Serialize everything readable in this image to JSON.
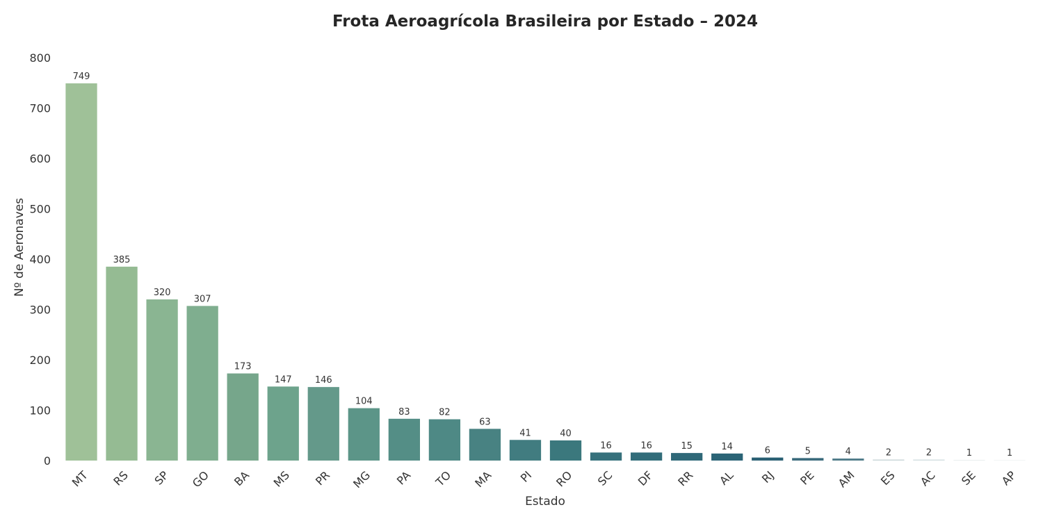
{
  "chart_data": {
    "type": "bar",
    "title": "Frota Aeroagrícola Brasileira por Estado – 2024",
    "xlabel": "Estado",
    "ylabel": "Nº de Aeronaves",
    "ylim": [
      0,
      800
    ],
    "yticks": [
      "0",
      "100",
      "200",
      "300",
      "400",
      "500",
      "600",
      "700",
      "800"
    ],
    "grid": false,
    "categories": [
      "MT",
      "RS",
      "SP",
      "GO",
      "BA",
      "MS",
      "PR",
      "MG",
      "PA",
      "TO",
      "MA",
      "PI",
      "RO",
      "SC",
      "DF",
      "RR",
      "AL",
      "RJ",
      "PE",
      "AM",
      "ES",
      "AC",
      "SE",
      "AP"
    ],
    "values": [
      749,
      385,
      320,
      307,
      173,
      147,
      146,
      104,
      83,
      82,
      63,
      41,
      40,
      16,
      16,
      15,
      14,
      6,
      5,
      4,
      2,
      2,
      1,
      1
    ],
    "data_labels": [
      "749",
      "385",
      "320",
      "307",
      "173",
      "147",
      "146",
      "104",
      "83",
      "82",
      "63",
      "41",
      "40",
      "16",
      "16",
      "15",
      "14",
      "6",
      "5",
      "4",
      "2",
      "2",
      "1",
      "1"
    ],
    "colors": [
      "#9fc198",
      "#95bb93",
      "#8ab592",
      "#7fae8f",
      "#76a68b",
      "#6da38c",
      "#64998a",
      "#5c9588",
      "#548e86",
      "#4e8985",
      "#488282",
      "#417c80",
      "#3b787d",
      "#36717c",
      "#326d7a",
      "#2f6878",
      "#2b6476",
      "#2a6074",
      "#3a6b7c",
      "#4e7a88",
      "#c8d6d8",
      "#d3dfe0",
      "#e3eaea",
      "#eef2f2"
    ]
  }
}
